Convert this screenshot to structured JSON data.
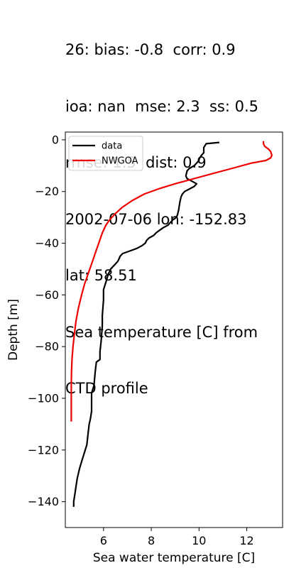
{
  "header": {
    "lines": [
      "26: bias: -0.8  corr: 0.9",
      "ioa: nan  mse: 2.3  ss: 0.5",
      "rmse: 1.5  dist: 0.9",
      "2002-07-06 lon: -152.83",
      "lat: 58.51",
      "Sea temperature [C] from",
      "CTD profile"
    ]
  },
  "chart_data": {
    "type": "line",
    "xlabel": "Sea water temperature [C]",
    "ylabel": "Depth [m]",
    "xlim": [
      4.4,
      13.5
    ],
    "ylim": [
      -150,
      3
    ],
    "xticks": [
      6,
      8,
      10,
      12
    ],
    "yticks": [
      0,
      -20,
      -40,
      -60,
      -80,
      -100,
      -120,
      -140
    ],
    "grid": false,
    "legend": "top-left",
    "series": [
      {
        "name": "data",
        "color": "#000000",
        "points": [
          [
            10.85,
            -1
          ],
          [
            10.3,
            -1.5
          ],
          [
            10.2,
            -3
          ],
          [
            10.2,
            -5
          ],
          [
            10.1,
            -6
          ],
          [
            10.0,
            -7.5
          ],
          [
            10.0,
            -8
          ],
          [
            9.9,
            -9
          ],
          [
            9.8,
            -10
          ],
          [
            9.6,
            -11
          ],
          [
            9.5,
            -12
          ],
          [
            9.45,
            -14
          ],
          [
            9.5,
            -15
          ],
          [
            9.7,
            -16
          ],
          [
            9.9,
            -17
          ],
          [
            9.8,
            -18
          ],
          [
            9.6,
            -19
          ],
          [
            9.4,
            -20
          ],
          [
            9.3,
            -21
          ],
          [
            9.25,
            -22
          ],
          [
            9.2,
            -24
          ],
          [
            9.15,
            -27
          ],
          [
            9.1,
            -29
          ],
          [
            9.05,
            -30
          ],
          [
            8.9,
            -31
          ],
          [
            8.8,
            -32
          ],
          [
            8.7,
            -33
          ],
          [
            8.5,
            -34
          ],
          [
            8.35,
            -35
          ],
          [
            8.2,
            -36
          ],
          [
            8.1,
            -37
          ],
          [
            7.9,
            -38
          ],
          [
            7.8,
            -39
          ],
          [
            7.75,
            -40
          ],
          [
            7.6,
            -41
          ],
          [
            7.4,
            -42
          ],
          [
            7.1,
            -43
          ],
          [
            6.8,
            -44
          ],
          [
            6.7,
            -45
          ],
          [
            6.65,
            -46
          ],
          [
            6.6,
            -47
          ],
          [
            6.5,
            -48
          ],
          [
            6.4,
            -49
          ],
          [
            6.3,
            -50
          ],
          [
            6.2,
            -52
          ],
          [
            6.1,
            -55
          ],
          [
            6.0,
            -58
          ],
          [
            6.0,
            -62
          ],
          [
            5.95,
            -68
          ],
          [
            5.95,
            -72
          ],
          [
            5.9,
            -78
          ],
          [
            5.85,
            -82
          ],
          [
            5.85,
            -85
          ],
          [
            5.7,
            -86
          ],
          [
            5.65,
            -90
          ],
          [
            5.6,
            -95
          ],
          [
            5.5,
            -98
          ],
          [
            5.5,
            -102
          ],
          [
            5.5,
            -105
          ],
          [
            5.45,
            -108
          ],
          [
            5.4,
            -110
          ],
          [
            5.35,
            -114
          ],
          [
            5.3,
            -118
          ],
          [
            5.2,
            -121
          ],
          [
            5.1,
            -124
          ],
          [
            5.0,
            -127
          ],
          [
            4.9,
            -131
          ],
          [
            4.85,
            -134
          ],
          [
            4.8,
            -137
          ],
          [
            4.75,
            -140
          ],
          [
            4.75,
            -142
          ]
        ]
      },
      {
        "name": "NWGOA",
        "color": "#ee0000",
        "points": [
          [
            12.7,
            -0.5
          ],
          [
            12.7,
            -1.5
          ],
          [
            12.75,
            -2.5
          ],
          [
            12.9,
            -3.5
          ],
          [
            13.0,
            -4.5
          ],
          [
            13.05,
            -6
          ],
          [
            13.0,
            -7
          ],
          [
            12.8,
            -8
          ],
          [
            12.2,
            -9
          ],
          [
            11.4,
            -11
          ],
          [
            10.6,
            -13
          ],
          [
            9.8,
            -15
          ],
          [
            9.0,
            -17
          ],
          [
            8.3,
            -19
          ],
          [
            7.7,
            -21
          ],
          [
            7.2,
            -23.5
          ],
          [
            6.8,
            -26
          ],
          [
            6.5,
            -28.5
          ],
          [
            6.25,
            -31
          ],
          [
            6.1,
            -33
          ],
          [
            5.95,
            -36
          ],
          [
            5.8,
            -40
          ],
          [
            5.65,
            -44
          ],
          [
            5.5,
            -48
          ],
          [
            5.35,
            -52
          ],
          [
            5.2,
            -56
          ],
          [
            5.08,
            -60
          ],
          [
            4.95,
            -65
          ],
          [
            4.85,
            -70
          ],
          [
            4.78,
            -75
          ],
          [
            4.72,
            -80
          ],
          [
            4.68,
            -85
          ],
          [
            4.66,
            -90
          ],
          [
            4.65,
            -95
          ],
          [
            4.65,
            -100
          ],
          [
            4.65,
            -105
          ],
          [
            4.65,
            -109
          ]
        ]
      }
    ]
  }
}
